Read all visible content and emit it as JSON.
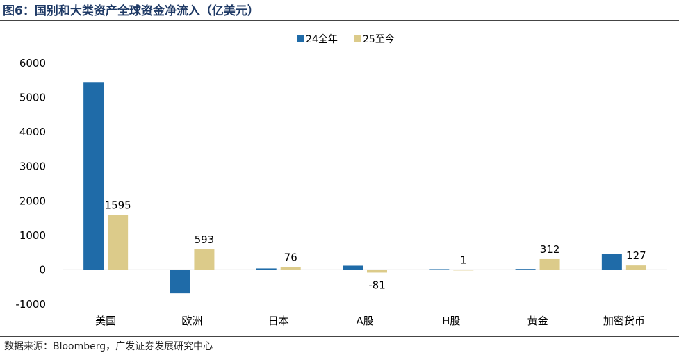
{
  "header": {
    "title": "图6：国别和大类资产全球资金净流入（亿美元）"
  },
  "footer": {
    "source": "数据来源：Bloomberg，广发证券发展研究中心"
  },
  "colors": {
    "series_2024": "#1f6ba8",
    "series_2025": "#dccb8a",
    "title": "#1f3a66",
    "axis": "#bfbfbf"
  },
  "chart_data": {
    "type": "bar",
    "title": "国别和大类资产全球资金净流入（亿美元）",
    "categories": [
      "美国",
      "欧洲",
      "日本",
      "A股",
      "H股",
      "黄金",
      "加密货币"
    ],
    "series": [
      {
        "name": "24全年",
        "values": [
          5450,
          -680,
          40,
          120,
          20,
          25,
          460
        ],
        "labeled": false
      },
      {
        "name": "25至今",
        "values": [
          1595,
          593,
          76,
          -81,
          1,
          312,
          127
        ],
        "labeled": true
      }
    ],
    "ylim": [
      -1000,
      6000
    ],
    "yticks": [
      -1000,
      0,
      1000,
      2000,
      3000,
      4000,
      5000,
      6000
    ],
    "xlabel": "",
    "ylabel": "",
    "legend": "top-center",
    "grid": false
  }
}
